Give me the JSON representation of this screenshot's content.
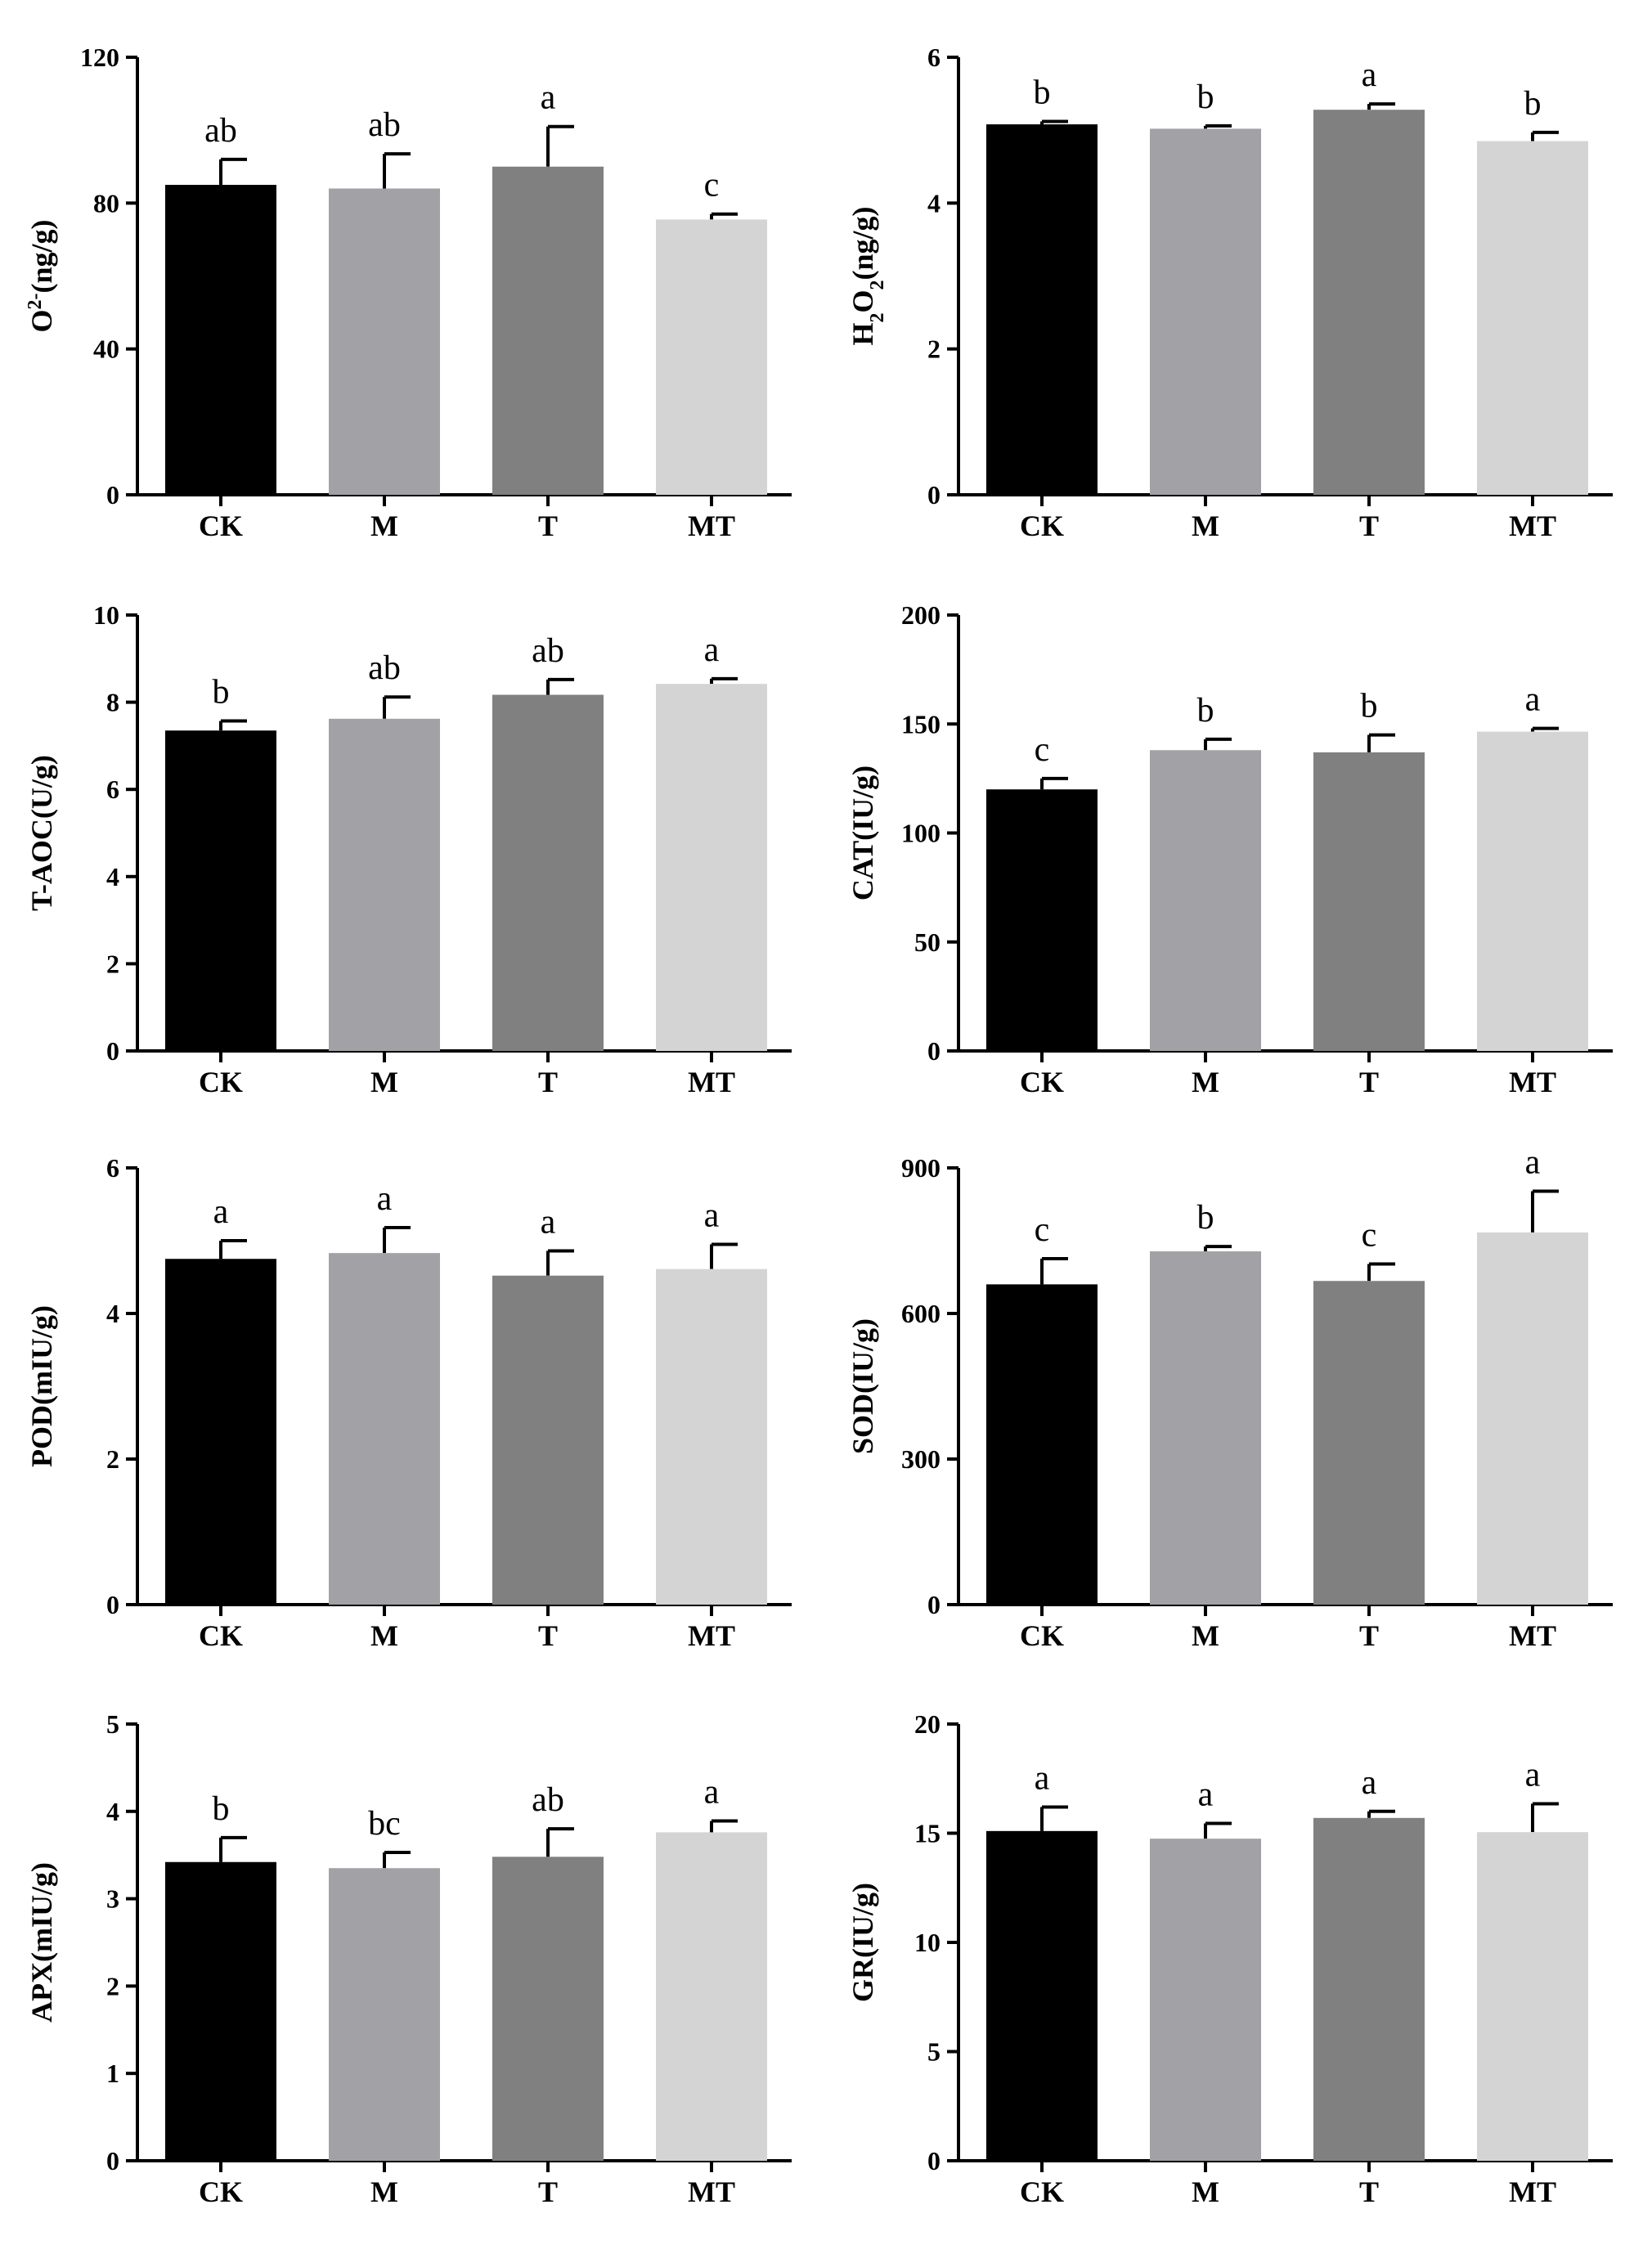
{
  "colors": {
    "CK": "#000000",
    "M": "#a2a1a6",
    "T": "#808080",
    "MT": "#d4d4d4",
    "axis": "#000000"
  },
  "chart_data": [
    {
      "type": "bar",
      "id": "o2",
      "ylabel": "O2-(ng/g)",
      "ylabel_parts": [
        {
          "t": "O"
        },
        {
          "t": "2-",
          "sup": true
        },
        {
          "t": "(ng/g)"
        }
      ],
      "categories": [
        "CK",
        "M",
        "T",
        "MT"
      ],
      "values": [
        85,
        84,
        90,
        75.5
      ],
      "errors": [
        7,
        9.5,
        11,
        1.5
      ],
      "letters": [
        "ab",
        "ab",
        "a",
        "c"
      ],
      "ylim": [
        0,
        120
      ],
      "yticks": [
        "0",
        "40",
        "80",
        "120"
      ]
    },
    {
      "type": "bar",
      "id": "h2o2",
      "ylabel": "H2O2(ng/g)",
      "ylabel_parts": [
        {
          "t": "H"
        },
        {
          "t": "2",
          "sub": true
        },
        {
          "t": "O"
        },
        {
          "t": "2",
          "sub": true
        },
        {
          "t": "(ng/g)"
        }
      ],
      "categories": [
        "CK",
        "M",
        "T",
        "MT"
      ],
      "values": [
        5.08,
        5.02,
        5.28,
        4.85
      ],
      "errors": [
        0.04,
        0.04,
        0.08,
        0.12
      ],
      "letters": [
        "b",
        "b",
        "a",
        "b"
      ],
      "ylim": [
        0,
        6
      ],
      "yticks": [
        "0",
        "2",
        "4",
        "6"
      ]
    },
    {
      "type": "bar",
      "id": "taoc",
      "ylabel": "T-AOC(U/g)",
      "ylabel_parts": [
        {
          "t": "T-AOC(U/g)"
        }
      ],
      "categories": [
        "CK",
        "M",
        "T",
        "MT"
      ],
      "values": [
        7.35,
        7.62,
        8.17,
        8.42
      ],
      "errors": [
        0.22,
        0.5,
        0.35,
        0.12
      ],
      "letters": [
        "b",
        "ab",
        "ab",
        "a"
      ],
      "ylim": [
        0,
        10
      ],
      "yticks": [
        "0",
        "2",
        "4",
        "6",
        "8",
        "10"
      ]
    },
    {
      "type": "bar",
      "id": "cat",
      "ylabel": "CAT(IU/g)",
      "ylabel_parts": [
        {
          "t": "CAT(IU/g)"
        }
      ],
      "categories": [
        "CK",
        "M",
        "T",
        "MT"
      ],
      "values": [
        120,
        138,
        137,
        146.5
      ],
      "errors": [
        5,
        5,
        8,
        1.5
      ],
      "letters": [
        "c",
        "b",
        "b",
        "a"
      ],
      "ylim": [
        0,
        200
      ],
      "yticks": [
        "0",
        "50",
        "100",
        "150",
        "200"
      ]
    },
    {
      "type": "bar",
      "id": "pod",
      "ylabel": "POD(mIU/g)",
      "ylabel_parts": [
        {
          "t": "POD(mIU/g)"
        }
      ],
      "categories": [
        "CK",
        "M",
        "T",
        "MT"
      ],
      "values": [
        4.75,
        4.83,
        4.52,
        4.61
      ],
      "errors": [
        0.25,
        0.35,
        0.34,
        0.34
      ],
      "letters": [
        "a",
        "a",
        "a",
        "a"
      ],
      "ylim": [
        0,
        6
      ],
      "yticks": [
        "0",
        "2",
        "4",
        "6"
      ]
    },
    {
      "type": "bar",
      "id": "sod",
      "ylabel": "SOD(IU/g)",
      "ylabel_parts": [
        {
          "t": "SOD(IU/g)"
        }
      ],
      "categories": [
        "CK",
        "M",
        "T",
        "MT"
      ],
      "values": [
        660,
        728,
        667,
        767
      ],
      "errors": [
        53,
        10,
        35,
        85
      ],
      "letters": [
        "c",
        "b",
        "c",
        "a"
      ],
      "ylim": [
        0,
        900
      ],
      "yticks": [
        "0",
        "300",
        "600",
        "900"
      ]
    },
    {
      "type": "bar",
      "id": "apx",
      "ylabel": "APX(mIU/g)",
      "ylabel_parts": [
        {
          "t": "APX(mIU/g)"
        }
      ],
      "categories": [
        "CK",
        "M",
        "T",
        "MT"
      ],
      "values": [
        3.42,
        3.35,
        3.48,
        3.76
      ],
      "errors": [
        0.28,
        0.18,
        0.32,
        0.13
      ],
      "letters": [
        "b",
        "bc",
        "ab",
        "a"
      ],
      "ylim": [
        0,
        5
      ],
      "yticks": [
        "0",
        "1",
        "2",
        "3",
        "4",
        "5"
      ]
    },
    {
      "type": "bar",
      "id": "gr",
      "ylabel": "GR(IU/g)",
      "ylabel_parts": [
        {
          "t": "GR(IU/g)"
        }
      ],
      "categories": [
        "CK",
        "M",
        "T",
        "MT"
      ],
      "values": [
        15.1,
        14.75,
        15.7,
        15.05
      ],
      "errors": [
        1.1,
        0.7,
        0.3,
        1.3
      ],
      "letters": [
        "a",
        "a",
        "a",
        "a"
      ],
      "ylim": [
        0,
        20
      ],
      "yticks": [
        "0",
        "5",
        "10",
        "15",
        "20"
      ]
    }
  ]
}
